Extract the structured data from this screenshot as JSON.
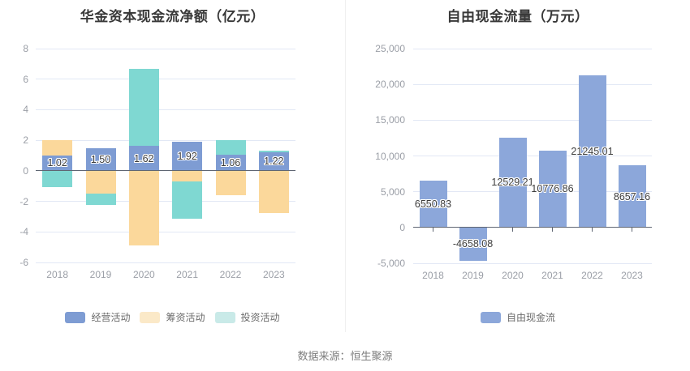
{
  "source": "数据来源：恒生聚源",
  "colors": {
    "grid": "#e2e8f5",
    "zero_axis": "#5f6673",
    "tick_label": "#9a9ea6",
    "title_text": "#383838",
    "value_label_text": "#3d3d3d",
    "source_text": "#7d7d7d"
  },
  "chart_data": [
    {
      "type": "bar",
      "stacked": true,
      "title": "华金资本现金流净额（亿元）",
      "categories": [
        "2018",
        "2019",
        "2020",
        "2021",
        "2022",
        "2023"
      ],
      "series": [
        {
          "key": "operating",
          "name": "经营活动",
          "color": "#7e9cd3",
          "legend_color": "#7e9cd3",
          "values": [
            1.02,
            1.5,
            1.62,
            1.92,
            1.06,
            1.22
          ]
        },
        {
          "key": "financing",
          "name": "筹资活动",
          "color": "#fbd89b",
          "legend_color": "#fbe9c8",
          "values": [
            0.98,
            -1.5,
            -4.9,
            -0.7,
            -1.62,
            -2.76
          ]
        },
        {
          "key": "investing",
          "name": "投资活动",
          "color": "#7fd8d2",
          "legend_color": "#c9eae8",
          "values": [
            -1.05,
            -0.72,
            5.08,
            -2.45,
            0.95,
            0.12
          ]
        }
      ],
      "bar_labels": [
        "1.02",
        "1.50",
        "1.62",
        "1.92",
        "1.06",
        "1.22"
      ],
      "label_series_index": 0,
      "y_axis": {
        "min": -6,
        "max": 8,
        "ticks": [
          {
            "value": 8,
            "label": "8"
          },
          {
            "value": 6,
            "label": "6"
          },
          {
            "value": 4,
            "label": "4"
          },
          {
            "value": 2,
            "label": "2"
          },
          {
            "value": 0,
            "label": "0"
          },
          {
            "value": -2,
            "label": "-2"
          },
          {
            "value": -4,
            "label": "-4"
          },
          {
            "value": -6,
            "label": "-6"
          }
        ]
      },
      "grid": true,
      "legend_position": "bottom"
    },
    {
      "type": "bar",
      "stacked": false,
      "title": "自由现金流量（万元）",
      "categories": [
        "2018",
        "2019",
        "2020",
        "2021",
        "2022",
        "2023"
      ],
      "series": [
        {
          "key": "free-cash-flow",
          "name": "自由现金流",
          "color": "#8ca7da",
          "legend_color": "#8ca7da",
          "values": [
            6550.83,
            -4658.08,
            12529.21,
            10776.86,
            21245.01,
            8657.16
          ]
        }
      ],
      "bar_labels": [
        "6550.83",
        "-4658.08",
        "12529.21",
        "10776.86",
        "21245.01",
        "8657.16"
      ],
      "label_series_index": 0,
      "y_axis": {
        "min": -5000,
        "max": 25000,
        "ticks": [
          {
            "value": 25000,
            "label": "25,000"
          },
          {
            "value": 20000,
            "label": "20,000"
          },
          {
            "value": 15000,
            "label": "15,000"
          },
          {
            "value": 10000,
            "label": "10,000"
          },
          {
            "value": 5000,
            "label": "5,000"
          },
          {
            "value": 0,
            "label": "0"
          },
          {
            "value": -5000,
            "label": "-5,000"
          }
        ]
      },
      "grid": true,
      "legend_position": "bottom"
    }
  ]
}
